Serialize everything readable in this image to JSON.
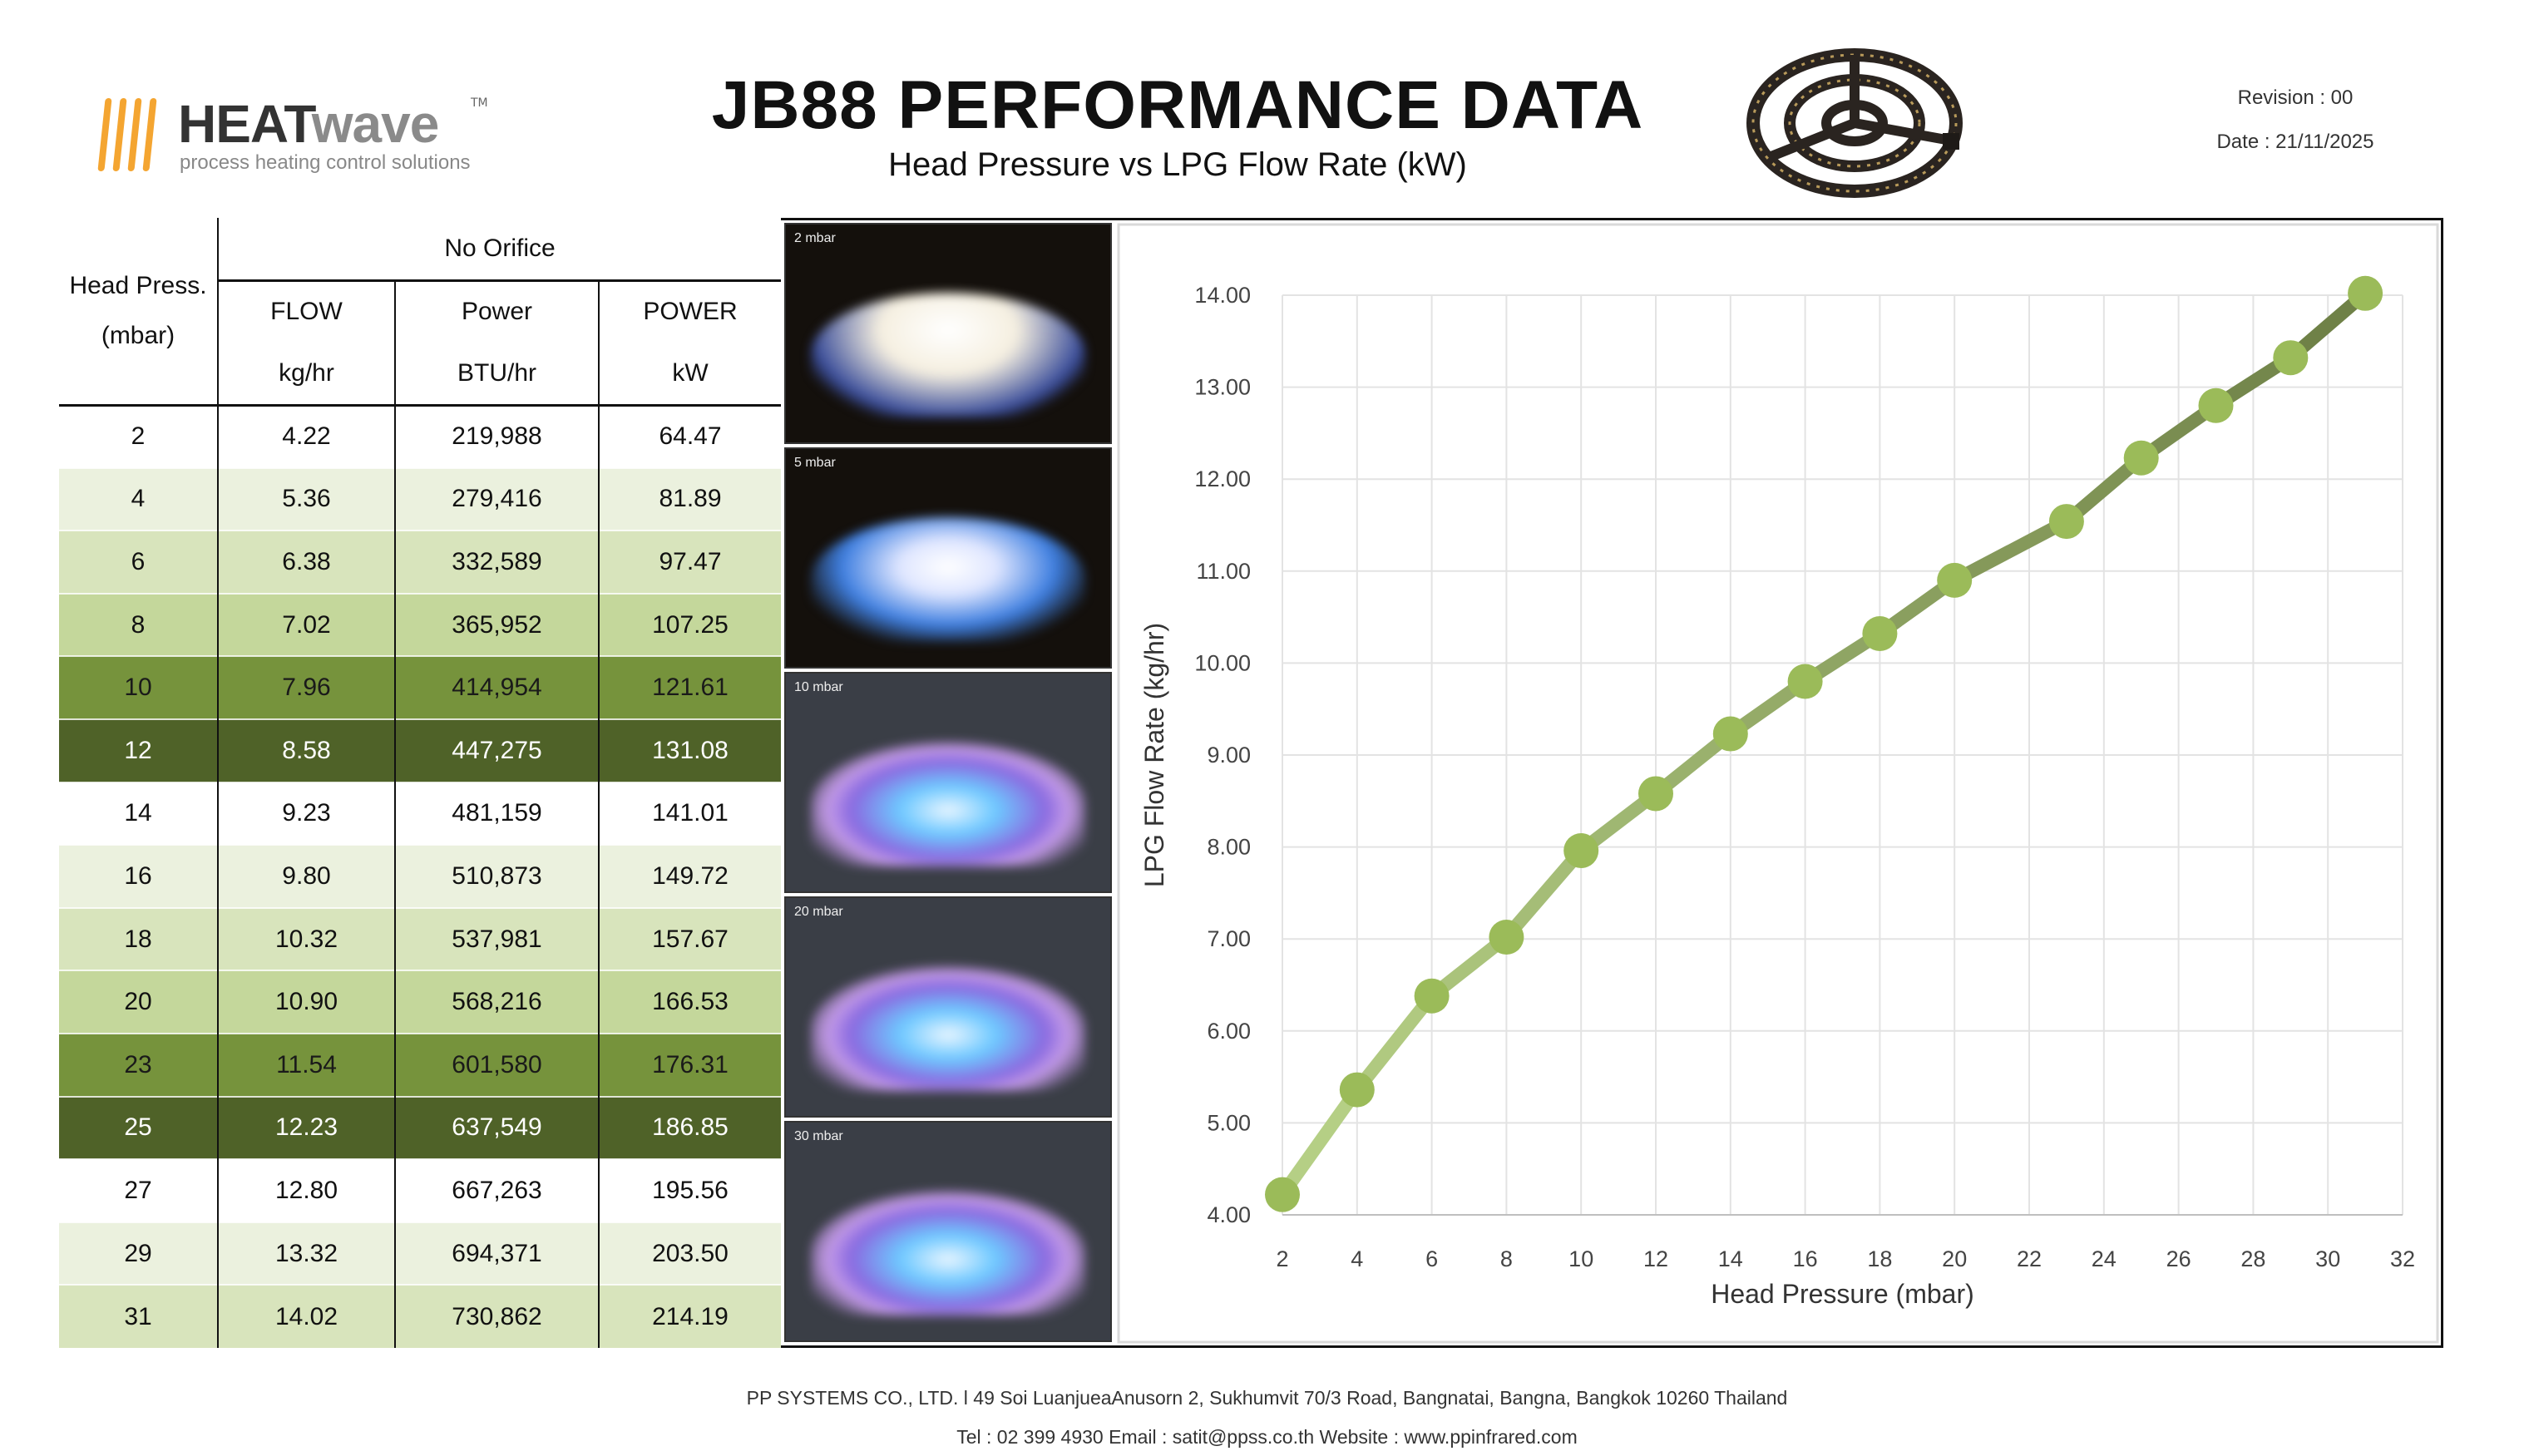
{
  "header": {
    "logo": {
      "brand_heat": "HEAT",
      "brand_wave": "wave",
      "trademark": "TM",
      "tagline": "process heating control solutions"
    },
    "title": "JB88 PERFORMANCE DATA",
    "subtitle": "Head Pressure vs LPG Flow Rate (kW)",
    "revision": "Revision : 00",
    "date": "Date :  21/11/2025"
  },
  "table": {
    "head_press_label": "Head Press.",
    "head_press_unit": "(mbar)",
    "group_label": "No Orifice",
    "columns": [
      {
        "label": "FLOW",
        "unit": "kg/hr"
      },
      {
        "label": "Power",
        "unit": "BTU/hr"
      },
      {
        "label": "POWER",
        "unit": "kW"
      }
    ],
    "rows": [
      {
        "p": "2",
        "flow": "4.22",
        "btu": "219,988",
        "kw": "64.47",
        "bg": "#ffffff",
        "fg": "#111111"
      },
      {
        "p": "4",
        "flow": "5.36",
        "btu": "279,416",
        "kw": "81.89",
        "bg": "#ebf1de",
        "fg": "#111111"
      },
      {
        "p": "6",
        "flow": "6.38",
        "btu": "332,589",
        "kw": "97.47",
        "bg": "#d8e4bc",
        "fg": "#111111"
      },
      {
        "p": "8",
        "flow": "7.02",
        "btu": "365,952",
        "kw": "107.25",
        "bg": "#c4d79b",
        "fg": "#111111"
      },
      {
        "p": "10",
        "flow": "7.96",
        "btu": "414,954",
        "kw": "121.61",
        "bg": "#76933c",
        "fg": "#1a1a1a"
      },
      {
        "p": "12",
        "flow": "8.58",
        "btu": "447,275",
        "kw": "131.08",
        "bg": "#4f6228",
        "fg": "#ffffff"
      },
      {
        "p": "14",
        "flow": "9.23",
        "btu": "481,159",
        "kw": "141.01",
        "bg": "#ffffff",
        "fg": "#111111"
      },
      {
        "p": "16",
        "flow": "9.80",
        "btu": "510,873",
        "kw": "149.72",
        "bg": "#ebf1de",
        "fg": "#111111"
      },
      {
        "p": "18",
        "flow": "10.32",
        "btu": "537,981",
        "kw": "157.67",
        "bg": "#d8e4bc",
        "fg": "#111111"
      },
      {
        "p": "20",
        "flow": "10.90",
        "btu": "568,216",
        "kw": "166.53",
        "bg": "#c4d79b",
        "fg": "#111111"
      },
      {
        "p": "23",
        "flow": "11.54",
        "btu": "601,580",
        "kw": "176.31",
        "bg": "#76933c",
        "fg": "#1a1a1a"
      },
      {
        "p": "25",
        "flow": "12.23",
        "btu": "637,549",
        "kw": "186.85",
        "bg": "#4f6228",
        "fg": "#ffffff"
      },
      {
        "p": "27",
        "flow": "12.80",
        "btu": "667,263",
        "kw": "195.56",
        "bg": "#ffffff",
        "fg": "#111111"
      },
      {
        "p": "29",
        "flow": "13.32",
        "btu": "694,371",
        "kw": "203.50",
        "bg": "#ebf1de",
        "fg": "#111111"
      },
      {
        "p": "31",
        "flow": "14.02",
        "btu": "730,862",
        "kw": "214.19",
        "bg": "#d8e4bc",
        "fg": "#111111"
      }
    ]
  },
  "photos": [
    {
      "label": "2 mbar",
      "flame": "white"
    },
    {
      "label": "5 mbar",
      "flame": "white-blue"
    },
    {
      "label": "10 mbar",
      "flame": "blue-purple"
    },
    {
      "label": "20 mbar",
      "flame": "blue-purple"
    },
    {
      "label": "30 mbar",
      "flame": "blue-purple"
    }
  ],
  "chart_data": {
    "type": "line",
    "xlabel": "Head Pressure (mbar)",
    "ylabel": "LPG Flow Rate (kg/hr)",
    "xlim": [
      2,
      32
    ],
    "ylim": [
      4,
      14
    ],
    "xticks": [
      "2",
      "4",
      "6",
      "8",
      "10",
      "12",
      "14",
      "16",
      "18",
      "20",
      "22",
      "24",
      "26",
      "28",
      "30",
      "32"
    ],
    "yticks": [
      "4.00",
      "5.00",
      "6.00",
      "7.00",
      "8.00",
      "9.00",
      "10.00",
      "11.00",
      "12.00",
      "13.00",
      "14.00"
    ],
    "grid": true,
    "x": [
      2,
      4,
      6,
      8,
      10,
      12,
      14,
      16,
      18,
      20,
      23,
      25,
      27,
      29,
      31
    ],
    "y": [
      4.22,
      5.36,
      6.38,
      7.02,
      7.96,
      8.58,
      9.23,
      9.8,
      10.32,
      10.9,
      11.54,
      12.23,
      12.8,
      13.32,
      14.02
    ],
    "colors": {
      "line_start": "#b5cf85",
      "line_end": "#6f8147",
      "marker": "#9bbb59"
    }
  },
  "footer": {
    "address": "PP SYSTEMS CO., LTD. l 49 Soi LuanjueaAnusorn 2, Sukhumvit 70/3 Road, Bangnatai, Bangna, Bangkok 10260 Thailand",
    "contact": "Tel : 02 399 4930  Email : satit@ppss.co.th Website : www.ppinfrared.com"
  }
}
